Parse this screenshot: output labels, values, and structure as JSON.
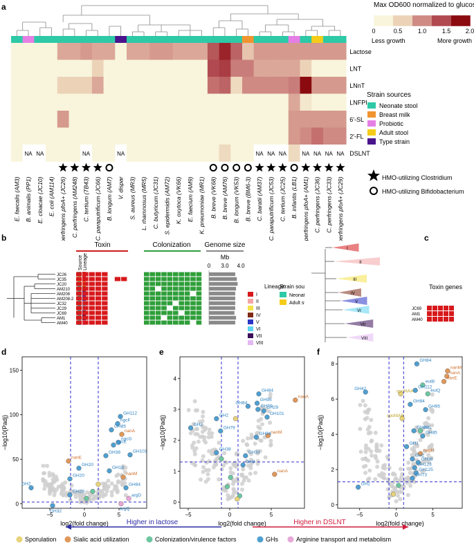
{
  "panels": {
    "a": "a",
    "b": "b",
    "c": "c",
    "d": "d",
    "e": "e",
    "f": "f"
  },
  "heatmap": {
    "legend_title": "Max OD600 normalized to glucose",
    "legend_ticks": [
      "0",
      "0.5",
      "1.0",
      "1.5",
      "2.0"
    ],
    "less_growth": "Less growth",
    "more_growth": "More growth",
    "rows": [
      "Lactose",
      "LNT",
      "LNnT",
      "LNFPI",
      "6'-SL",
      "2'-FL",
      "DSLNT"
    ],
    "na_label": "NA",
    "strains": [
      {
        "name": "E. faecalis (AM3)",
        "src": 0
      },
      {
        "name": "B. animalis (PP1)",
        "src": 2
      },
      {
        "name": "E. cloacae (JC10)",
        "src": 0
      },
      {
        "name": "E. coli (AM114)",
        "src": 0
      },
      {
        "name": "C. perfringens pfoA+ (JC26)",
        "src": 0
      },
      {
        "name": "C. perfringens (AM248)",
        "src": 0
      },
      {
        "name": "C. tertium (TB43)",
        "src": 0
      },
      {
        "name": "C. paraputrificum (JC66)",
        "src": 0
      },
      {
        "name": "B. longum (AM7)",
        "src": 0
      },
      {
        "name": "V. dispar",
        "src": 4
      },
      {
        "name": "S. aureus (MR3)",
        "src": 0
      },
      {
        "name": "L. rhamnosus (MR5)",
        "src": 0
      },
      {
        "name": "C. butyricum (JC31)",
        "src": 0
      },
      {
        "name": "S. epidermidis (AM72)",
        "src": 0
      },
      {
        "name": "K. oxytoca (VK66)",
        "src": 0
      },
      {
        "name": "E. faecium (AM9)",
        "src": 0
      },
      {
        "name": "K. pneumoniae (MR1)",
        "src": 0
      },
      {
        "name": "B. breve (VK68)",
        "src": 0
      },
      {
        "name": "B. breve (AM76)",
        "src": 0
      },
      {
        "name": "B. longum (VK53)",
        "src": 0
      },
      {
        "name": "B. breve (BM6-3)",
        "src": 1
      },
      {
        "name": "C. baratii (AM37)",
        "src": 0
      },
      {
        "name": "C. paraputrificum (JC53)",
        "src": 0
      },
      {
        "name": "C. tertium (JC25)",
        "src": 0
      },
      {
        "name": "B. infantis (LB1)",
        "src": 2
      },
      {
        "name": "C. perfringens pfoA+ (AM1)",
        "src": 0
      },
      {
        "name": "C. perfringens (JC36)",
        "src": 3
      },
      {
        "name": "C. perfringens (JC33)",
        "src": 0
      },
      {
        "name": "C. perfringens pfoA+ (JC29)",
        "src": 0
      }
    ],
    "values": [
      [
        0,
        0,
        0,
        0,
        0.8,
        0.8,
        0.9,
        0.8,
        0.8,
        0,
        0.8,
        0.8,
        0.9,
        0.9,
        0.8,
        0.8,
        0.8,
        1.4,
        1.8,
        1.3,
        0.6,
        0.9,
        0.9,
        0.9,
        0.9,
        0.9,
        0.9,
        0.9,
        0.9
      ],
      [
        0,
        0,
        0,
        0,
        0,
        0,
        0,
        0.5,
        0,
        0,
        0,
        0,
        0,
        0,
        0,
        0,
        0,
        1.5,
        1.6,
        1.1,
        1.1,
        0.8,
        0.8,
        0.8,
        0.8,
        0.5,
        0,
        0,
        0
      ],
      [
        0,
        0,
        0,
        0,
        0.5,
        0.5,
        0.5,
        0.8,
        0,
        0,
        0,
        0,
        0,
        0,
        0,
        0,
        0,
        1.2,
        1.3,
        0.4,
        1.0,
        1.0,
        1.0,
        1.0,
        1.1,
        2.0,
        0.9,
        0.9,
        0.9
      ],
      [
        0,
        0,
        0,
        0,
        0,
        0,
        0,
        0,
        0,
        0,
        0,
        0,
        0,
        0,
        0,
        0,
        0,
        0,
        0,
        0,
        0,
        0,
        0,
        0,
        0.8,
        0.2,
        0,
        0,
        0
      ],
      [
        0,
        0,
        0,
        0,
        0.9,
        0,
        0,
        0,
        0,
        0,
        0,
        0,
        0,
        0,
        0,
        0,
        0,
        0,
        0,
        0,
        0,
        0,
        0,
        0,
        0.9,
        0.9,
        0.9,
        0.9,
        0.9
      ],
      [
        0,
        0,
        0,
        0,
        0,
        0,
        0,
        0,
        0,
        0,
        0,
        0,
        0,
        0,
        0,
        0,
        0,
        0,
        0,
        0,
        0,
        0,
        0,
        0,
        0.9,
        1.0,
        1.2,
        1.0,
        1.0
      ],
      [
        0,
        null,
        null,
        0,
        0,
        0,
        null,
        0,
        0,
        null,
        0,
        0,
        0,
        0,
        0,
        0,
        0,
        0,
        0.4,
        0,
        0,
        null,
        null,
        null,
        0.4,
        null,
        null,
        null,
        null
      ]
    ],
    "markers": [
      "",
      "",
      "",
      "",
      "star",
      "star",
      "star",
      "star",
      "circle",
      "",
      "",
      "",
      "",
      "",
      "",
      "",
      "",
      "circle",
      "circle",
      "circle",
      "circle",
      "star",
      "star",
      "star",
      "circle",
      "star",
      "star",
      "star",
      "star"
    ],
    "strain_sources": {
      "title": "Strain sources",
      "items": [
        {
          "label": "Neonate stool",
          "color": "#2ec9a7"
        },
        {
          "label": "Breast milk",
          "color": "#f0942f"
        },
        {
          "label": "Probiotic",
          "color": "#e67fe5"
        },
        {
          "label": "Adult stool",
          "color": "#f5cc1a"
        },
        {
          "label": "Type strain",
          "color": "#4a148c"
        }
      ]
    },
    "marker_legend": [
      {
        "label": "HMO-utilizing Clostridium",
        "marker": "star"
      },
      {
        "label": "HMO-utilizing Bifidobacterium",
        "marker": "circle"
      }
    ],
    "colors": {
      "low": "#f8f5dc",
      "high": "#8b0a10"
    }
  },
  "panel_b": {
    "groups": [
      "Toxin",
      "Colonization",
      "Genome size"
    ],
    "source_label": "Source",
    "lineage_label": "Lineage",
    "genome_unit": "Mb",
    "genome_ticks": [
      "0",
      "3.0",
      "4.0"
    ],
    "strains": [
      "JC26",
      "JC35",
      "JC20",
      "AM210",
      "AM208",
      "AM208-2",
      "JC32",
      "JC29",
      "JC69",
      "AM1",
      "AM40"
    ],
    "genome_mb": [
      3.3,
      3.5,
      3.6,
      3.4,
      3.3,
      3.3,
      3.3,
      3.3,
      3.2,
      3.4,
      3.3
    ],
    "strain_source_title": "Strain source",
    "strain_source_items": [
      {
        "label": "Neonate stool",
        "color": "#2ec9a7"
      },
      {
        "label": "Adult stool",
        "color": "#f5cc1a"
      }
    ],
    "lineage_items": [
      {
        "label": "I",
        "color": "#d7191c"
      },
      {
        "label": "II",
        "color": "#f4a6a6"
      },
      {
        "label": "III",
        "color": "#f5e24b"
      },
      {
        "label": "IV",
        "color": "#7f2a16"
      },
      {
        "label": "V",
        "color": "#2a35c6"
      },
      {
        "label": "VI",
        "color": "#5fd3f0"
      },
      {
        "label": "VII",
        "color": "#3b0f5a"
      },
      {
        "label": "VIII",
        "color": "#e3b8f2"
      }
    ]
  },
  "panel_c": {
    "clades": [
      "I",
      "II",
      "III",
      "IV",
      "V",
      "VI",
      "VII",
      "VIII"
    ],
    "strains": [
      "JC69",
      "AM1",
      "AM40"
    ],
    "toxin_label": "Toxin genes"
  },
  "volcano": {
    "ylabel": "−log10(Padj)",
    "xlabel": "log2(fold change)",
    "d": {
      "xticks": [
        "−5",
        "0",
        "5"
      ],
      "yticks": [
        "0",
        "50",
        "100",
        "150"
      ]
    },
    "e": {
      "xticks": [
        "−5",
        "0",
        "5"
      ],
      "yticks": [
        "0",
        "1",
        "2",
        "3",
        "4"
      ]
    },
    "f": {
      "xticks": [
        "−5",
        "0",
        "5"
      ],
      "yticks": [
        "0",
        "2",
        "4",
        "6",
        "8"
      ]
    }
  },
  "direction": {
    "left": "Higher in lactose",
    "right": "Higher in DSLNT"
  },
  "categories": [
    {
      "label": "Sporulation",
      "color": "#e8d37a"
    },
    {
      "label": "Sialic acid utilization",
      "color": "#e0975a"
    },
    {
      "label": "Colonization/virulence factors",
      "color": "#6cc6a0"
    },
    {
      "label": "GHs",
      "color": "#4f9fd0"
    },
    {
      "label": "Arginine transport and metabolism",
      "color": "#e7a7d8"
    }
  ]
}
